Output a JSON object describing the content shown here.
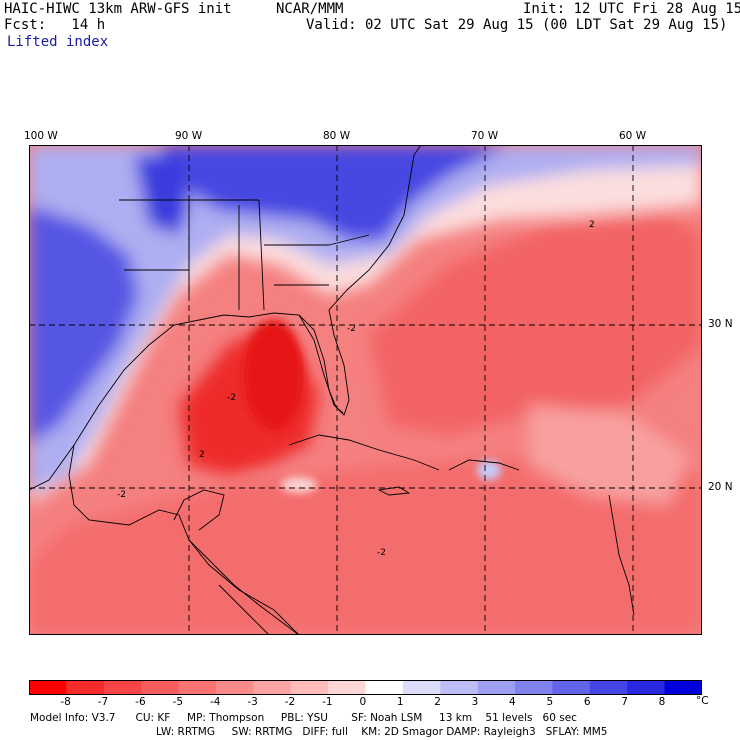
{
  "header": {
    "model": "HAIC-HIWC 13km ARW-GFS init",
    "org": "NCAR/MMM",
    "init": "Init: 12 UTC Fri 28 Aug 15",
    "fcst": "Fcst:   14 h",
    "valid": "Valid: 02 UTC Sat 29 Aug 15 (00 LDT Sat 29 Aug 15)",
    "field": "Lifted index"
  },
  "map": {
    "lon_labels": [
      "100 W",
      "90 W",
      "80 W",
      "70 W",
      "60 W"
    ],
    "lat_labels": [
      "30 N",
      "20 N"
    ],
    "contour_labels": [
      "-2",
      "2",
      "-2",
      "-2",
      "-2",
      "2"
    ],
    "colors": {
      "strong_neg": "#ee1c1c",
      "mid_neg": "#f45a5a",
      "weak_neg": "#f9a3a3",
      "neutral": "#fde3e3",
      "weak_pos": "#c8c8f6",
      "mid_pos": "#7a7ae8",
      "strong_pos": "#2b2bd6",
      "land_outline": "#000000"
    }
  },
  "colorbar": {
    "ticks": [
      "-8",
      "-7",
      "-6",
      "-5",
      "-4",
      "-3",
      "-2",
      "-1",
      "0",
      "1",
      "2",
      "3",
      "4",
      "5",
      "6",
      "7",
      "8"
    ],
    "unit": "°C",
    "colors": [
      "#ff0000",
      "#f52a2a",
      "#f74545",
      "#f85d5d",
      "#fa7474",
      "#fb8b8b",
      "#fca3a3",
      "#fdbbbb",
      "#fed6d6",
      "#ffffff",
      "#dcdcfb",
      "#bebef6",
      "#9e9ef2",
      "#8181ee",
      "#6464ea",
      "#4646e6",
      "#2828e0",
      "#0000dd"
    ]
  },
  "footer": {
    "line1": "Model Info: V3.7      CU: KF     MP: Thompson     PBL: YSU       SF: Noah LSM     13 km    51 levels   60 sec",
    "line2": "LW: RRTMG     SW: RRTMG   DIFF: full    KM: 2D Smagor DAMP: Rayleigh3   SFLAY: MM5"
  }
}
